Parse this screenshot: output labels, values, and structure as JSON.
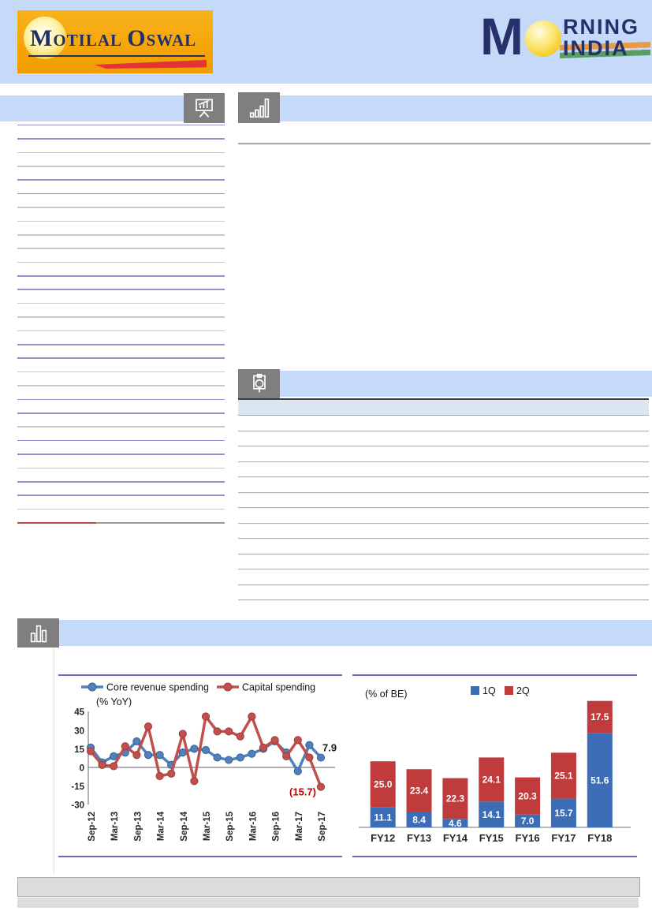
{
  "brand": {
    "motilal_logo": {
      "word1_initial": "M",
      "word1_rest": "OTILAL",
      "word2_initial": "O",
      "word2_rest": "SWAL",
      "bg_color": "#f5a204",
      "text_color": "#232f62",
      "swoosh_color": "#e23434"
    },
    "morning_india_logo": {
      "m": "M",
      "rning": "RNING",
      "india": "INDIA",
      "text_color": "#27306b",
      "sun_color": "#f5c918",
      "stripe_orange": "#ef8b1f",
      "stripe_green": "#3f8f3f"
    }
  },
  "theme": {
    "banner_blue": "#c4daf8",
    "icon_box_gray": "#7f7f7f",
    "panel_border_purple": "#6a6ab2",
    "toc_line_purple": "#9292c6",
    "toc_line_gray": "#c8c8c8",
    "toc_line_red": "#b94a4a",
    "table_header_fill": "#dce6f1",
    "table_top_border": "#3f3f3f",
    "table_row_line": "#b0b0b0",
    "footer_gray": "#dcdcdc"
  },
  "sidebar": {
    "rows": [
      "purple",
      "purple",
      "gray",
      "gray",
      "purple",
      "purple",
      "gray",
      "gray",
      "gray",
      "gray",
      "gray",
      "purple",
      "purple",
      "gray",
      "gray",
      "gray",
      "purple",
      "purple",
      "gray",
      "gray",
      "purple",
      "purple",
      "gray",
      "purple",
      "purple",
      "gray",
      "purple",
      "purple",
      "gray",
      "red-gray"
    ]
  },
  "right_table": {
    "row_count": 12
  },
  "chart_data": [
    {
      "type": "line",
      "unit_label": "(% YoY)",
      "x": [
        "Sep-12",
        "Dec-12",
        "Mar-13",
        "Jun-13",
        "Sep-13",
        "Dec-13",
        "Mar-14",
        "Jun-14",
        "Sep-14",
        "Dec-14",
        "Mar-15",
        "Jun-15",
        "Sep-15",
        "Dec-15",
        "Mar-16",
        "Jun-16",
        "Sep-16",
        "Dec-16",
        "Mar-17",
        "Jun-17",
        "Sep-17"
      ],
      "x_tick_every": 2,
      "ylim": [
        -30,
        45
      ],
      "yticks": [
        45,
        30,
        15,
        0,
        -15,
        -30
      ],
      "grid": "zero-line-only",
      "legend_position": "top",
      "series": [
        {
          "name": "Core revenue spending",
          "color": "#4f81bd",
          "edge": "#3a6191",
          "values": [
            16,
            4,
            9,
            12,
            21,
            10,
            10,
            2,
            12,
            15,
            14,
            8,
            6,
            8,
            11,
            15,
            21,
            12,
            -3,
            18,
            7.9
          ],
          "end_label": "7.9",
          "end_label_color": "#1a1a1a"
        },
        {
          "name": "Capital spending",
          "color": "#c0504d",
          "edge": "#9e3d3b",
          "values": [
            13,
            2,
            1,
            17,
            10,
            33,
            -7,
            -5,
            27,
            -11,
            41,
            29,
            29,
            25,
            41,
            16,
            22,
            9,
            22,
            8,
            -15.7
          ],
          "end_label": "(15.7)",
          "end_label_color": "#c00000"
        }
      ]
    },
    {
      "type": "bar",
      "stacked": true,
      "unit_label": "(% of BE)",
      "categories": [
        "FY12",
        "FY13",
        "FY14",
        "FY15",
        "FY16",
        "FY17",
        "FY18"
      ],
      "legend_position": "top",
      "series": [
        {
          "name": "1Q",
          "color": "#3c6db6",
          "values": [
            11.1,
            8.4,
            4.6,
            14.1,
            7.0,
            15.7,
            51.6
          ]
        },
        {
          "name": "2Q",
          "color": "#c03c3c",
          "values": [
            25.0,
            23.4,
            22.3,
            24.1,
            20.3,
            25.1,
            17.5
          ]
        }
      ]
    }
  ]
}
